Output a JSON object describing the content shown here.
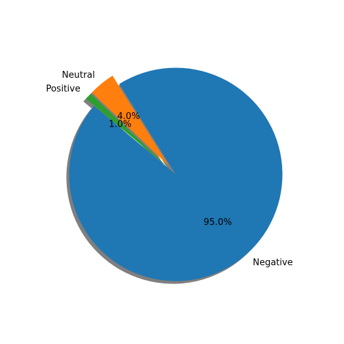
{
  "chart_data": {
    "type": "pie",
    "title": "",
    "labels": [
      "Negative",
      "Neutral",
      "Positive"
    ],
    "values": [
      95.0,
      4.0,
      1.0
    ],
    "pct_labels": [
      "95.0%",
      "4.0%",
      "1.0%"
    ],
    "colors": [
      "#1f77b4",
      "#ff7f0e",
      "#2ca02c"
    ],
    "explode": [
      0,
      0.1,
      0.1
    ],
    "start_angle_deg": 140,
    "shadow": true,
    "shadow_color": "#7f7f7f"
  }
}
